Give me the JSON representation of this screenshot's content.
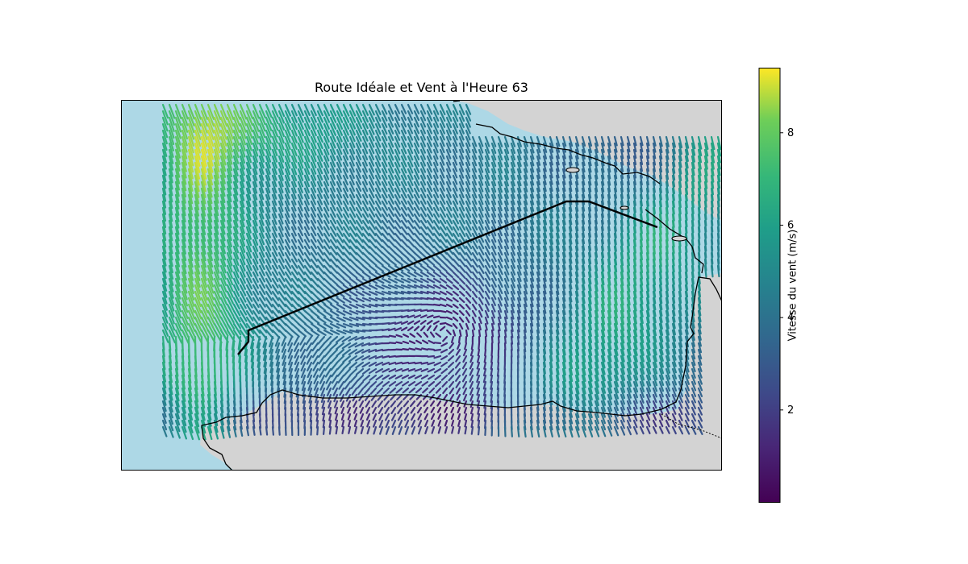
{
  "title": "Route Idéale et Vent à l'Heure 63",
  "colorbar": {
    "label": "Vitesse du vent (m/s)",
    "ticks": [
      "2",
      "4",
      "6",
      "8"
    ],
    "tick_values": [
      2,
      4,
      6,
      8
    ],
    "min": 0,
    "max": 9.4,
    "colormap": "viridis"
  },
  "colors": {
    "sea": "#add8e6",
    "land": "#d3d3d3",
    "coastline": "#000000",
    "route": "#000000"
  },
  "chart_data": {
    "type": "quiver",
    "title": "Route Idéale et Vent à l'Heure 63",
    "color_scale": {
      "label": "Vitesse du vent (m/s)",
      "min": 0,
      "max": 9.4
    },
    "route_shape": "optimal route from the south-west to the north-east, drawn as a black polyline",
    "grid": false
  }
}
